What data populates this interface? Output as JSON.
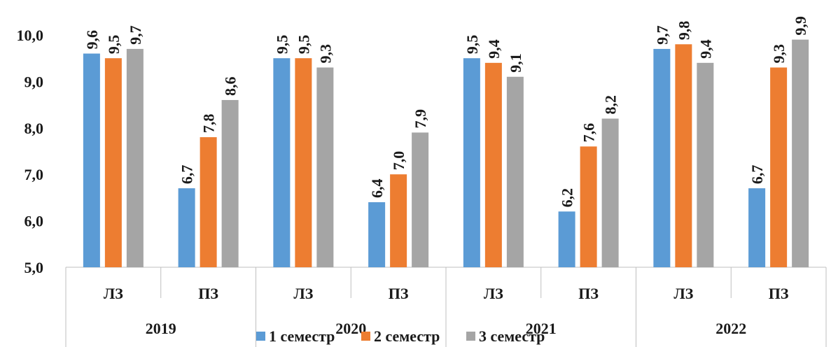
{
  "chart_data": {
    "type": "bar",
    "groups": [
      "2019",
      "2020",
      "2021",
      "2022"
    ],
    "subcategories": [
      "ЛЗ",
      "ПЗ"
    ],
    "categories": [
      "ЛЗ",
      "ПЗ",
      "ЛЗ",
      "ПЗ",
      "ЛЗ",
      "ПЗ",
      "ЛЗ",
      "ПЗ"
    ],
    "series": [
      {
        "name": "1 семестр",
        "color": "#5B9BD5",
        "values": [
          9.6,
          6.7,
          9.5,
          6.4,
          9.5,
          6.2,
          9.7,
          6.7
        ],
        "labels": [
          "9,6",
          "6,7",
          "9,5",
          "6,4",
          "9,5",
          "6,2",
          "9,7",
          "6,7"
        ]
      },
      {
        "name": "2 семестр",
        "color": "#ED7D31",
        "values": [
          9.5,
          7.8,
          9.5,
          7.0,
          9.4,
          7.6,
          9.8,
          9.3
        ],
        "labels": [
          "9,5",
          "7,8",
          "9,5",
          "7,0",
          "9,4",
          "7,6",
          "9,8",
          "9,3"
        ]
      },
      {
        "name": "3 семестр",
        "color": "#A5A5A5",
        "values": [
          9.7,
          8.6,
          9.3,
          7.9,
          9.1,
          8.2,
          9.4,
          9.9
        ],
        "labels": [
          "9,7",
          "8,6",
          "9,3",
          "7,9",
          "9,1",
          "8,2",
          "9,4",
          "9,9"
        ]
      }
    ],
    "yticks": [
      "5,0",
      "6,0",
      "7,0",
      "8,0",
      "9,0",
      "10,0"
    ],
    "ylim": [
      5,
      10
    ],
    "grid": false,
    "legend": "bottom",
    "title": "",
    "xlabel": "",
    "ylabel": ""
  }
}
